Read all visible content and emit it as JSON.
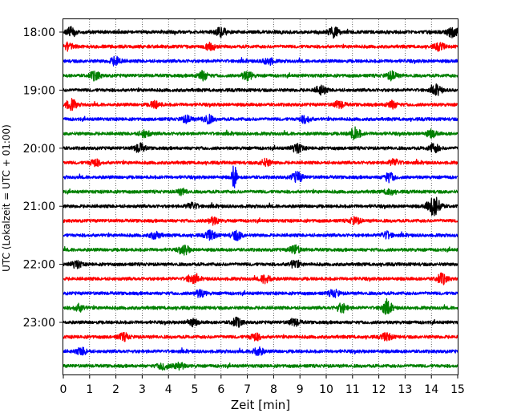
{
  "chart_data": {
    "type": "line",
    "title": "",
    "xlabel": "Zeit  [min]",
    "ylabel": "UTC (Lokalzeit = UTC + 01:00)",
    "xlim": [
      0,
      15
    ],
    "x_ticks": [
      "0",
      "1",
      "2",
      "3",
      "4",
      "5",
      "6",
      "7",
      "8",
      "9",
      "10",
      "11",
      "12",
      "13",
      "14",
      "15"
    ],
    "y_ticks": [
      "18:00",
      "19:00",
      "20:00",
      "21:00",
      "22:00",
      "23:00"
    ],
    "trace_interval_min": 15,
    "start": "18:00",
    "grid": "vertical dotted at each minute",
    "colors": [
      "#000000",
      "#ff0000",
      "#0000ff",
      "#008000"
    ],
    "series": [
      {
        "start": "18:00",
        "color": "#000000",
        "events": [
          {
            "t": 0.3,
            "a": 5
          },
          {
            "t": 6.0,
            "a": 5
          },
          {
            "t": 10.3,
            "a": 6
          },
          {
            "t": 14.8,
            "a": 6
          }
        ]
      },
      {
        "start": "18:15",
        "color": "#ff0000",
        "events": [
          {
            "t": 0.2,
            "a": 4
          },
          {
            "t": 5.6,
            "a": 4
          },
          {
            "t": 14.3,
            "a": 4
          }
        ]
      },
      {
        "start": "18:30",
        "color": "#0000ff",
        "events": [
          {
            "t": 2.0,
            "a": 5
          },
          {
            "t": 7.8,
            "a": 4
          }
        ]
      },
      {
        "start": "18:45",
        "color": "#008000",
        "events": [
          {
            "t": 1.2,
            "a": 5
          },
          {
            "t": 5.3,
            "a": 5
          },
          {
            "t": 7.0,
            "a": 5
          },
          {
            "t": 12.5,
            "a": 5
          }
        ]
      },
      {
        "start": "19:00",
        "color": "#000000",
        "events": [
          {
            "t": 9.8,
            "a": 5
          },
          {
            "t": 14.2,
            "a": 5
          }
        ]
      },
      {
        "start": "19:15",
        "color": "#ff0000",
        "events": [
          {
            "t": 0.3,
            "a": 6
          },
          {
            "t": 3.5,
            "a": 4
          },
          {
            "t": 10.5,
            "a": 4
          },
          {
            "t": 12.5,
            "a": 4
          }
        ]
      },
      {
        "start": "19:30",
        "color": "#0000ff",
        "events": [
          {
            "t": 4.7,
            "a": 4
          },
          {
            "t": 5.5,
            "a": 5
          },
          {
            "t": 9.2,
            "a": 4
          }
        ]
      },
      {
        "start": "19:45",
        "color": "#008000",
        "events": [
          {
            "t": 3.1,
            "a": 4
          },
          {
            "t": 11.1,
            "a": 7
          },
          {
            "t": 14.0,
            "a": 4
          }
        ]
      },
      {
        "start": "20:00",
        "color": "#000000",
        "events": [
          {
            "t": 2.9,
            "a": 5
          },
          {
            "t": 8.9,
            "a": 5
          },
          {
            "t": 14.1,
            "a": 5
          }
        ]
      },
      {
        "start": "20:15",
        "color": "#ff0000",
        "events": [
          {
            "t": 1.2,
            "a": 4
          },
          {
            "t": 7.7,
            "a": 4
          },
          {
            "t": 12.6,
            "a": 4
          }
        ]
      },
      {
        "start": "20:30",
        "color": "#0000ff",
        "events": [
          {
            "t": 6.5,
            "a": 16
          },
          {
            "t": 8.9,
            "a": 6
          },
          {
            "t": 12.4,
            "a": 5
          }
        ]
      },
      {
        "start": "20:45",
        "color": "#008000",
        "events": [
          {
            "t": 4.5,
            "a": 3
          },
          {
            "t": 12.4,
            "a": 3
          }
        ]
      },
      {
        "start": "21:00",
        "color": "#000000",
        "events": [
          {
            "t": 4.9,
            "a": 4
          },
          {
            "t": 14.0,
            "a": 7
          },
          {
            "t": 14.2,
            "a": 7
          }
        ]
      },
      {
        "start": "21:15",
        "color": "#ff0000",
        "events": [
          {
            "t": 5.7,
            "a": 4
          },
          {
            "t": 11.1,
            "a": 4
          }
        ]
      },
      {
        "start": "21:30",
        "color": "#0000ff",
        "events": [
          {
            "t": 3.5,
            "a": 4
          },
          {
            "t": 5.6,
            "a": 5
          },
          {
            "t": 6.6,
            "a": 5
          },
          {
            "t": 12.3,
            "a": 4
          }
        ]
      },
      {
        "start": "21:45",
        "color": "#008000",
        "events": [
          {
            "t": 4.6,
            "a": 5
          },
          {
            "t": 8.8,
            "a": 5
          }
        ]
      },
      {
        "start": "22:00",
        "color": "#000000",
        "events": [
          {
            "t": 0.5,
            "a": 4
          },
          {
            "t": 8.8,
            "a": 4
          }
        ]
      },
      {
        "start": "22:15",
        "color": "#ff0000",
        "events": [
          {
            "t": 4.9,
            "a": 5
          },
          {
            "t": 7.7,
            "a": 5
          },
          {
            "t": 14.4,
            "a": 6
          }
        ]
      },
      {
        "start": "22:30",
        "color": "#0000ff",
        "events": [
          {
            "t": 5.2,
            "a": 4
          },
          {
            "t": 10.3,
            "a": 4
          }
        ]
      },
      {
        "start": "22:45",
        "color": "#008000",
        "events": [
          {
            "t": 0.6,
            "a": 4
          },
          {
            "t": 10.6,
            "a": 5
          },
          {
            "t": 12.3,
            "a": 7
          }
        ]
      },
      {
        "start": "23:00",
        "color": "#000000",
        "events": [
          {
            "t": 4.9,
            "a": 4
          },
          {
            "t": 6.6,
            "a": 5
          },
          {
            "t": 8.8,
            "a": 4
          }
        ]
      },
      {
        "start": "23:15",
        "color": "#ff0000",
        "events": [
          {
            "t": 2.3,
            "a": 4
          },
          {
            "t": 7.3,
            "a": 4
          },
          {
            "t": 12.3,
            "a": 4
          }
        ]
      },
      {
        "start": "23:30",
        "color": "#0000ff",
        "events": [
          {
            "t": 0.7,
            "a": 4
          },
          {
            "t": 7.4,
            "a": 5
          }
        ]
      },
      {
        "start": "23:45",
        "color": "#008000",
        "events": [
          {
            "t": 3.8,
            "a": 4
          },
          {
            "t": 4.4,
            "a": 4
          }
        ]
      }
    ]
  }
}
